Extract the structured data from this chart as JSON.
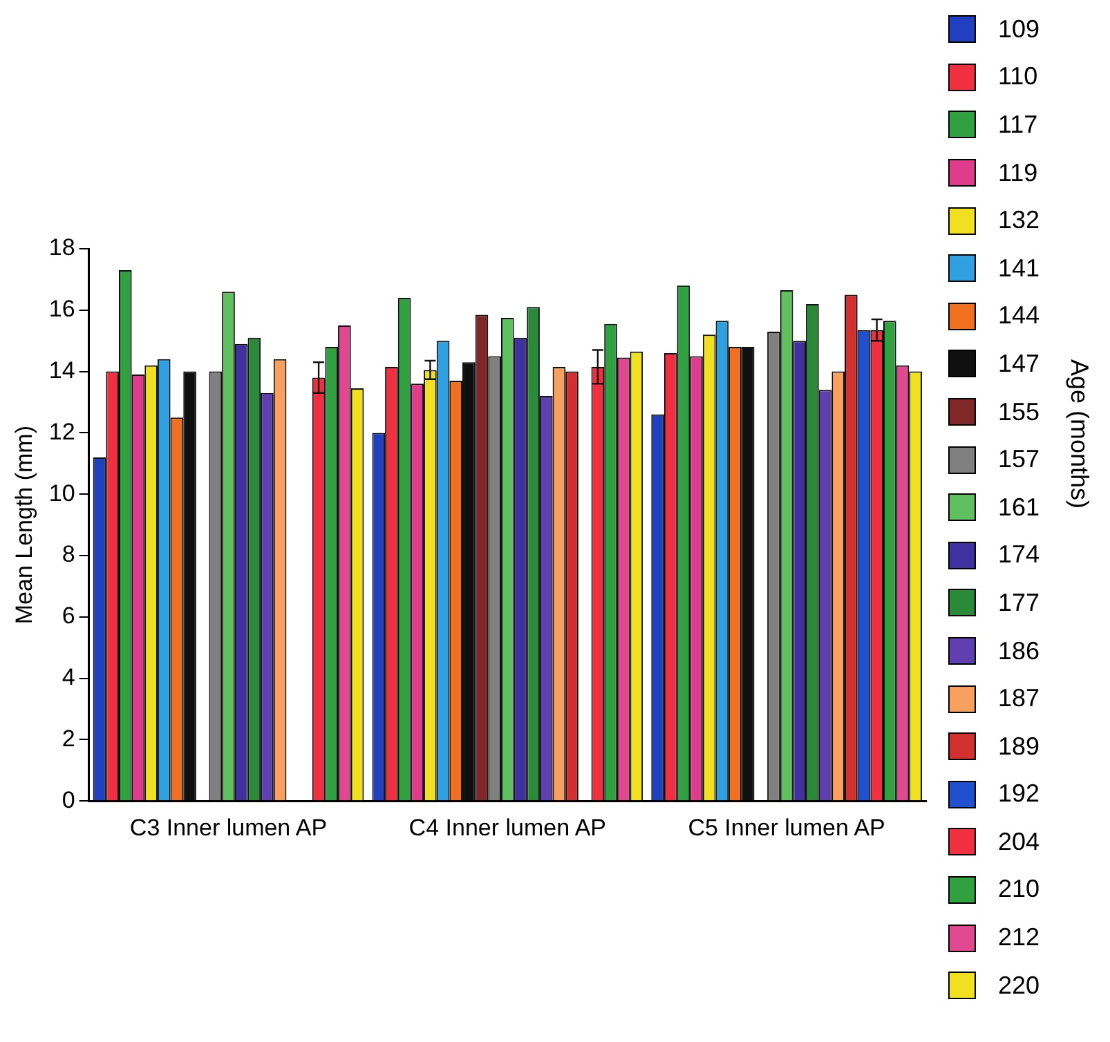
{
  "chart_data": {
    "type": "bar",
    "xlabel": null,
    "ylabel": "Mean Length (mm)",
    "legend_title": "Age (months)",
    "categories": [
      "C3 Inner lumen AP",
      "C4 Inner lumen AP",
      "C5 Inner lumen AP"
    ],
    "ylim": [
      0,
      18
    ],
    "yticks": [
      0,
      2,
      4,
      6,
      8,
      10,
      12,
      14,
      16,
      18
    ],
    "grid": false,
    "legend": "right",
    "series": [
      {
        "name": "109",
        "color": "#2040c0",
        "values": [
          11.2,
          12.0,
          12.6
        ]
      },
      {
        "name": "110",
        "color": "#f03040",
        "values": [
          14.0,
          14.15,
          14.6
        ]
      },
      {
        "name": "117",
        "color": "#30a040",
        "values": [
          17.3,
          16.4,
          16.8
        ]
      },
      {
        "name": "119",
        "color": "#e03c8c",
        "values": [
          13.9,
          13.6,
          14.5
        ]
      },
      {
        "name": "132",
        "color": "#f0e020",
        "values": [
          14.2,
          14.05,
          15.2
        ],
        "errors": [
          null,
          0.3,
          null
        ]
      },
      {
        "name": "141",
        "color": "#30a0e0",
        "values": [
          14.4,
          15.0,
          15.65
        ]
      },
      {
        "name": "144",
        "color": "#f07020",
        "values": [
          12.5,
          13.7,
          14.8
        ]
      },
      {
        "name": "147",
        "color": "#101010",
        "values": [
          14.0,
          14.3,
          14.8
        ]
      },
      {
        "name": "155",
        "color": "#802828",
        "values": [
          null,
          15.85,
          null
        ]
      },
      {
        "name": "157",
        "color": "#808080",
        "values": [
          14.0,
          14.5,
          15.3
        ]
      },
      {
        "name": "161",
        "color": "#60c060",
        "values": [
          16.6,
          15.75,
          16.65
        ]
      },
      {
        "name": "174",
        "color": "#4030a0",
        "values": [
          14.9,
          15.1,
          15.0
        ]
      },
      {
        "name": "177",
        "color": "#2a8a3a",
        "values": [
          15.1,
          16.1,
          16.2
        ]
      },
      {
        "name": "186",
        "color": "#6040b0",
        "values": [
          13.3,
          13.2,
          13.4
        ]
      },
      {
        "name": "187",
        "color": "#f8a060",
        "values": [
          14.4,
          14.15,
          14.0
        ]
      },
      {
        "name": "189",
        "color": "#d03030",
        "values": [
          null,
          14.0,
          16.5
        ]
      },
      {
        "name": "192",
        "color": "#2050d0",
        "values": [
          null,
          null,
          15.35
        ]
      },
      {
        "name": "204",
        "color": "#f03040",
        "values": [
          13.8,
          14.15,
          15.35
        ],
        "errors": [
          0.5,
          0.55,
          0.35
        ]
      },
      {
        "name": "210",
        "color": "#30a040",
        "values": [
          14.8,
          15.55,
          15.65
        ]
      },
      {
        "name": "212",
        "color": "#e04890",
        "values": [
          15.5,
          14.45,
          14.2
        ]
      },
      {
        "name": "220",
        "color": "#f0e020",
        "values": [
          13.45,
          14.65,
          14.0
        ]
      }
    ]
  }
}
